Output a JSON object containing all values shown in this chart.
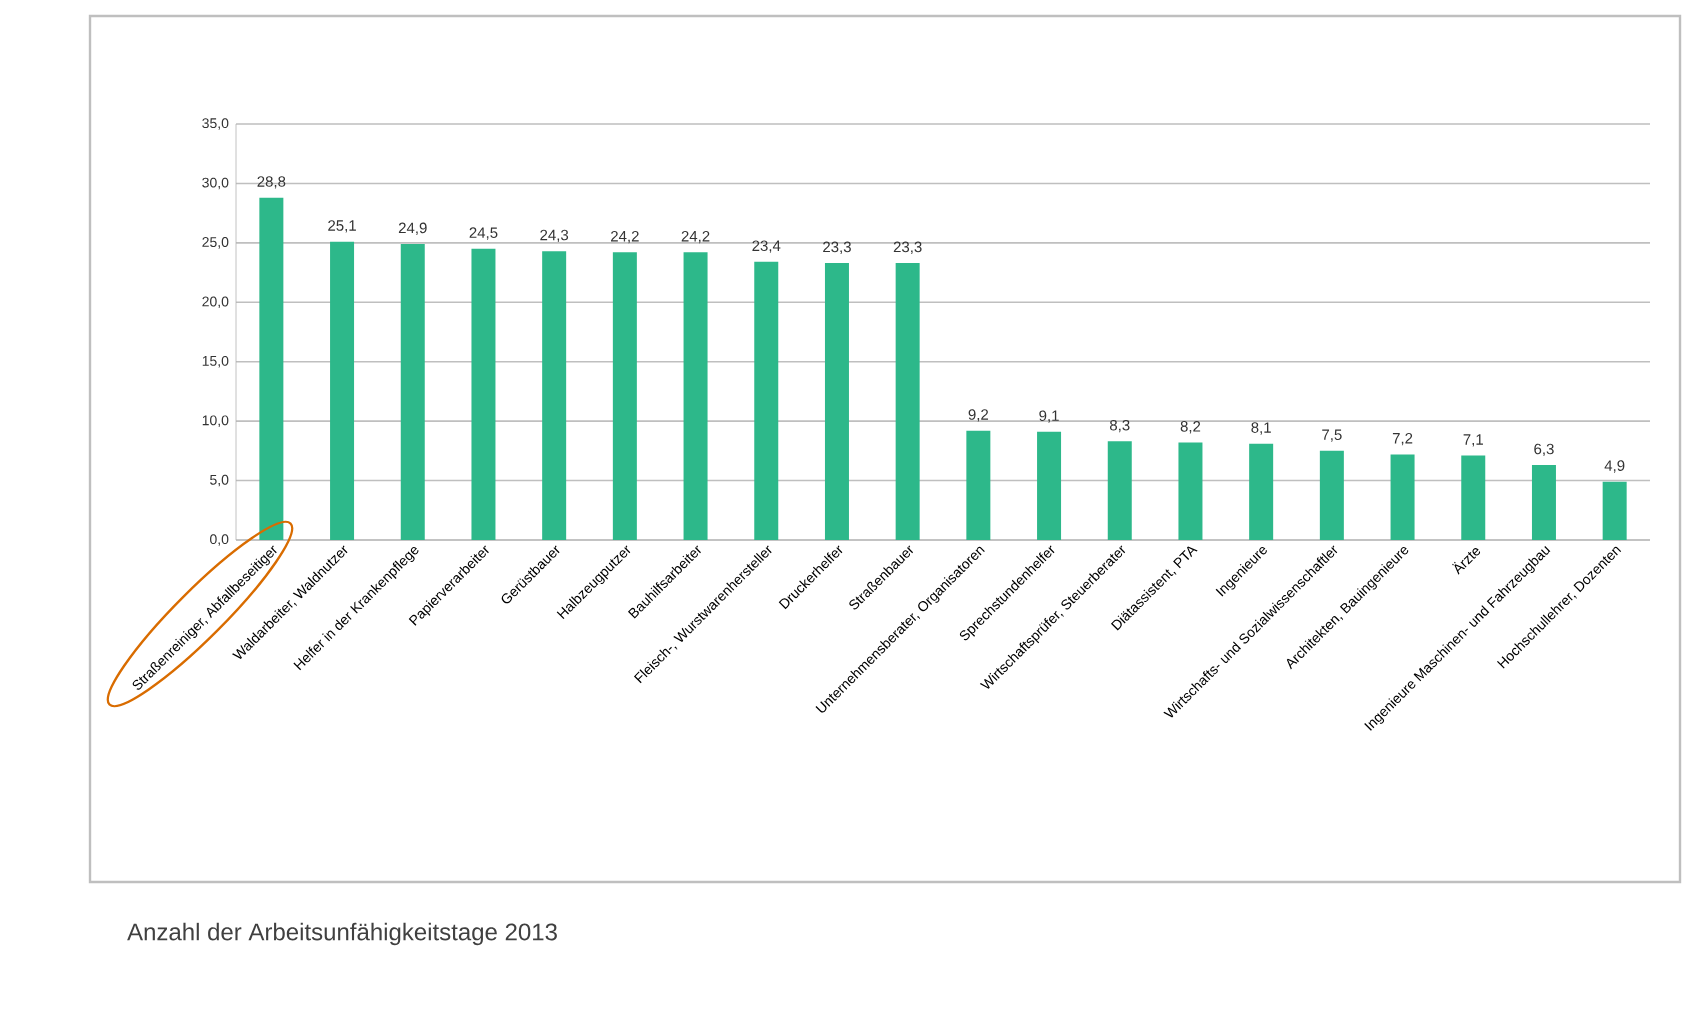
{
  "chart_data": {
    "type": "bar",
    "title": "Anzahl der Arbeitsunfähigkeitstage 2013",
    "categories": [
      "Straßenreiniger, Abfallbeseitiger",
      "Waldarbeiter, Waldnutzer",
      "Helfer in der Krankenpflege",
      "Papierverarbeiter",
      "Gerüstbauer",
      "Halbzeugputzer",
      "Bauhilfsarbeiter",
      "Fleisch-, Wurstwarenhersteller",
      "Druckerhelfer",
      "Straßenbauer",
      "Unternehmensberater, Organisatoren",
      "Sprechstundenhelfer",
      "Wirtschaftsprüfer, Steuerberater",
      "Diätassistent, PTA",
      "Ingenieure",
      "Wirtschafts- und Sozialwissenschaftler",
      "Architekten, Bauingenieure",
      "Ärzte",
      "Ingenieure Maschinen- und Fahrzeugbau",
      "Hochschullehrer, Dozenten"
    ],
    "values": [
      28.8,
      25.1,
      24.9,
      24.5,
      24.3,
      24.2,
      24.2,
      23.4,
      23.3,
      23.3,
      9.2,
      9.1,
      8.3,
      8.2,
      8.1,
      7.5,
      7.2,
      7.1,
      6.3,
      4.9
    ],
    "value_labels": [
      "28,8",
      "25,1",
      "24,9",
      "24,5",
      "24,3",
      "24,2",
      "24,2",
      "23,4",
      "23,3",
      "23,3",
      "9,2",
      "9,1",
      "8,3",
      "8,2",
      "8,1",
      "7,5",
      "7,2",
      "7,1",
      "6,3",
      "4,9"
    ],
    "color": "#2db88a",
    "ylim": [
      0,
      35
    ],
    "yticks": [
      {
        "value": 0,
        "label": "0,0"
      },
      {
        "value": 5,
        "label": "5,0"
      },
      {
        "value": 10,
        "label": "10,0"
      },
      {
        "value": 15,
        "label": "15,0"
      },
      {
        "value": 20,
        "label": "20,0"
      },
      {
        "value": 25,
        "label": "25,0"
      },
      {
        "value": 30,
        "label": "30,0"
      },
      {
        "value": 35,
        "label": "35,0"
      }
    ],
    "grid": "y"
  }
}
